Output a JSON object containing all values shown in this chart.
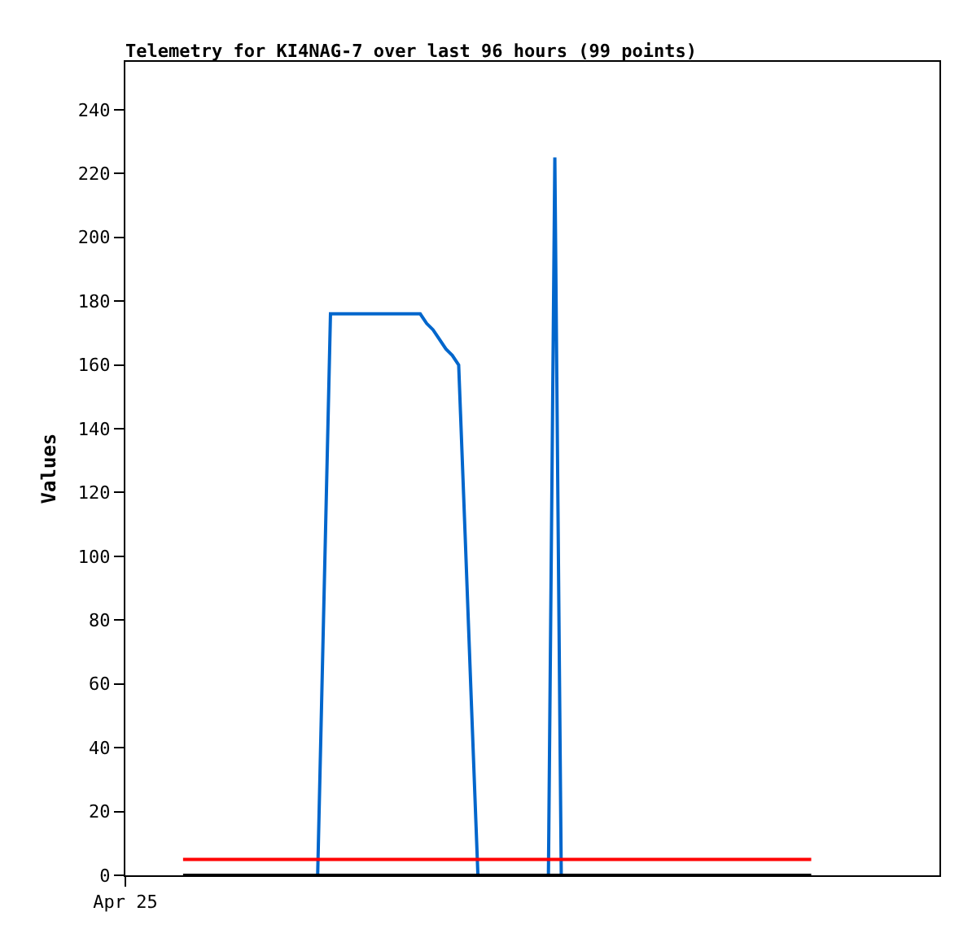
{
  "chart_data": {
    "type": "line",
    "title": "Telemetry for KI4NAG-7 over last 96 hours (99 points)",
    "ylabel": "Values",
    "categories": [
      "Apr 25",
      null,
      null,
      null,
      null,
      null,
      null,
      null,
      null,
      null,
      null,
      null,
      null,
      null,
      null,
      null,
      null,
      null,
      null,
      null,
      null,
      null,
      null,
      null,
      null,
      null,
      null,
      null,
      null,
      null,
      null,
      null,
      null,
      null,
      null,
      null,
      null,
      null,
      null,
      null,
      null,
      null,
      null,
      null,
      null,
      null,
      null,
      null,
      null,
      null,
      null,
      null,
      null,
      null,
      null,
      null,
      null,
      null,
      null,
      null,
      null,
      null,
      null,
      null,
      null,
      null,
      null,
      null,
      null,
      null,
      null,
      null,
      null,
      null,
      null,
      null,
      null,
      null,
      null,
      null,
      null,
      null,
      null,
      null,
      null,
      null,
      null,
      null,
      null,
      null,
      null,
      null,
      null,
      null,
      null,
      null,
      null,
      null,
      null,
      null,
      null,
      null,
      null,
      null,
      null,
      null,
      null,
      null,
      null,
      null,
      null,
      null,
      null,
      null,
      null,
      null,
      null,
      null,
      null,
      null,
      null,
      null,
      null,
      null,
      null,
      null,
      null,
      null
    ],
    "ylim": [
      0,
      255
    ],
    "yticks": [
      0,
      20,
      40,
      60,
      80,
      100,
      120,
      140,
      160,
      180,
      200,
      220,
      240
    ],
    "grid": false,
    "series": [
      {
        "color": "#0066cc",
        "values": [
          null,
          null,
          null,
          null,
          null,
          null,
          null,
          null,
          null,
          null,
          null,
          null,
          null,
          null,
          null,
          null,
          null,
          null,
          null,
          null,
          null,
          null,
          null,
          null,
          null,
          null,
          null,
          null,
          null,
          null,
          0,
          88,
          176,
          176,
          176,
          176,
          176,
          176,
          176,
          176,
          176,
          176,
          176,
          176,
          176,
          176,
          176,
          173,
          171,
          168,
          165,
          163,
          160,
          107,
          53,
          0,
          null,
          null,
          null,
          null,
          null,
          null,
          null,
          null,
          null,
          null,
          0,
          225,
          0,
          null,
          null,
          null,
          null,
          null,
          null,
          null,
          null,
          null,
          null,
          null,
          null,
          null,
          null,
          null,
          null,
          null,
          null,
          null,
          null,
          null,
          null,
          null,
          null,
          null,
          null,
          null,
          null,
          null,
          null,
          null,
          null,
          null,
          null,
          null,
          null,
          null,
          null,
          null,
          null,
          null,
          null,
          null,
          null,
          null,
          null,
          null,
          null,
          null,
          null,
          null,
          null,
          null,
          null,
          null,
          null,
          null,
          null,
          null
        ]
      },
      {
        "color": "#ff0000",
        "values": [
          null,
          null,
          null,
          null,
          null,
          null,
          null,
          null,
          null,
          5,
          5,
          5,
          5,
          5,
          5,
          5,
          5,
          5,
          5,
          5,
          5,
          5,
          5,
          5,
          5,
          5,
          5,
          5,
          5,
          5,
          5,
          5,
          5,
          5,
          5,
          5,
          5,
          5,
          5,
          5,
          5,
          5,
          5,
          5,
          5,
          5,
          5,
          5,
          5,
          5,
          5,
          5,
          5,
          5,
          5,
          5,
          5,
          5,
          5,
          5,
          5,
          5,
          5,
          5,
          5,
          5,
          5,
          5,
          5,
          5,
          5,
          5,
          5,
          5,
          5,
          5,
          5,
          5,
          5,
          5,
          5,
          5,
          5,
          5,
          5,
          5,
          5,
          5,
          5,
          5,
          5,
          5,
          5,
          5,
          5,
          5,
          5,
          5,
          5,
          5,
          5,
          5,
          5,
          5,
          5,
          5,
          5,
          5,
          null,
          null,
          null,
          null,
          null,
          null,
          null,
          null,
          null,
          null,
          null,
          null,
          null,
          null,
          null,
          null,
          null,
          null,
          null,
          null
        ]
      },
      {
        "color": "#000000",
        "values": [
          null,
          null,
          null,
          null,
          null,
          null,
          null,
          null,
          null,
          0,
          0,
          0,
          0,
          0,
          0,
          0,
          0,
          0,
          0,
          0,
          0,
          0,
          0,
          0,
          0,
          0,
          0,
          0,
          0,
          0,
          0,
          0,
          0,
          0,
          0,
          0,
          0,
          0,
          0,
          0,
          0,
          0,
          0,
          0,
          0,
          0,
          0,
          0,
          0,
          0,
          0,
          0,
          0,
          0,
          0,
          0,
          0,
          0,
          0,
          0,
          0,
          0,
          0,
          0,
          0,
          0,
          0,
          0,
          0,
          0,
          0,
          0,
          0,
          0,
          0,
          0,
          0,
          0,
          0,
          0,
          0,
          0,
          0,
          0,
          0,
          0,
          0,
          0,
          0,
          0,
          0,
          0,
          0,
          0,
          0,
          0,
          0,
          0,
          0,
          0,
          0,
          0,
          0,
          0,
          0,
          0,
          0,
          0,
          null,
          null,
          null,
          null,
          null,
          null,
          null,
          null,
          null,
          null,
          null,
          null,
          null,
          null,
          null,
          null,
          null,
          null,
          null,
          null
        ]
      }
    ]
  }
}
